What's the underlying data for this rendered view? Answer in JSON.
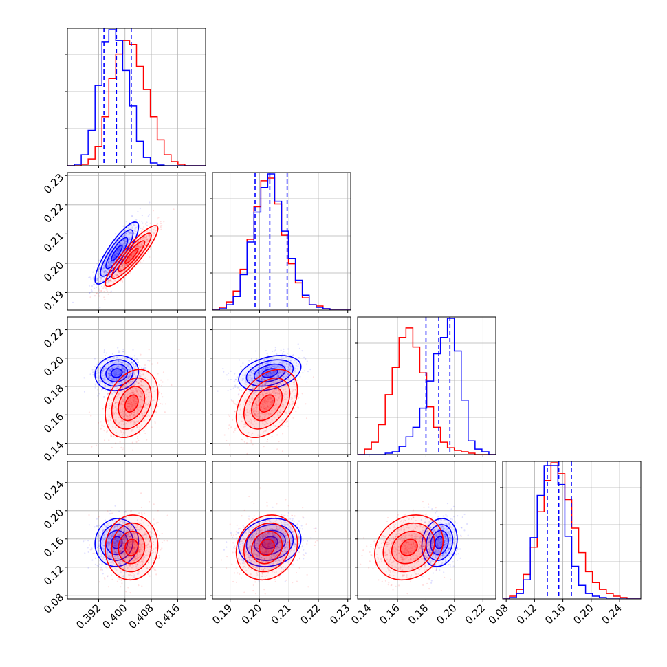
{
  "chart_data": {
    "type": "corner",
    "title": "",
    "grid": true,
    "parameters": [
      "",
      "",
      "",
      ""
    ],
    "series": [
      {
        "color": "#0000ff",
        "means": [
          0.3975,
          0.2035,
          0.1895,
          0.155
        ],
        "stds": [
          0.0033,
          0.0053,
          0.0062,
          0.017
        ],
        "correlations": {
          "0-1": 0.85,
          "0-2": 0.1,
          "0-3": 0.05,
          "1-2": 0.35,
          "1-3": 0.15,
          "2-3": 0.15
        },
        "quantile_lines": [
          [
            0.3936,
            0.3974,
            0.4019
          ],
          [
            0.1985,
            0.2035,
            0.2094
          ],
          [
            0.18,
            0.189,
            0.1968
          ],
          [
            0.138,
            0.1542,
            0.172
          ]
        ]
      },
      {
        "color": "#ff0000",
        "means": [
          0.402,
          0.2025,
          0.168,
          0.148
        ],
        "stds": [
          0.004,
          0.0052,
          0.012,
          0.023
        ],
        "correlations": {
          "0-1": 0.9,
          "0-2": 0.3,
          "0-3": 0.05,
          "1-2": 0.4,
          "1-3": 0.15,
          "2-3": 0.2
        }
      }
    ],
    "axes": [
      {
        "range": [
          0.3825,
          0.4245
        ],
        "ticks": [
          0.392,
          0.4,
          0.408,
          0.416
        ],
        "tick_labels": [
          "0.392",
          "0.400",
          "0.408",
          "0.416"
        ]
      },
      {
        "range": [
          0.184,
          0.231
        ],
        "ticks": [
          0.19,
          0.2,
          0.21,
          0.22,
          0.23
        ],
        "tick_labels": [
          "0.19",
          "0.20",
          "0.21",
          "0.22",
          "0.23"
        ]
      },
      {
        "range": [
          0.132,
          0.229
        ],
        "ticks": [
          0.14,
          0.16,
          0.18,
          0.2,
          0.22
        ],
        "tick_labels": [
          "0.14",
          "0.16",
          "0.18",
          "0.20",
          "0.22"
        ]
      },
      {
        "range": [
          0.075,
          0.27
        ],
        "ticks": [
          0.08,
          0.12,
          0.16,
          0.2,
          0.24
        ],
        "tick_labels": [
          "0.08",
          "0.12",
          "0.16",
          "0.20",
          "0.24"
        ]
      }
    ],
    "histograms": [
      {
        "bin_edges": [
          0.3825,
          0.3846,
          0.3867,
          0.3888,
          0.3909,
          0.393,
          0.3951,
          0.3972,
          0.3993,
          0.4014,
          0.4035,
          0.4056,
          0.4077,
          0.4098,
          0.4119,
          0.414,
          0.4161,
          0.4182,
          0.4203,
          0.4224,
          0.4245
        ],
        "blue": [
          0.0,
          0.01,
          0.08,
          0.26,
          0.59,
          0.91,
          1.0,
          0.92,
          0.7,
          0.44,
          0.18,
          0.06,
          0.02,
          0.005,
          0.0,
          0.0,
          0.0,
          0.0,
          0.0,
          0.0
        ],
        "red": [
          0.0,
          0.0,
          0.01,
          0.05,
          0.14,
          0.36,
          0.64,
          0.82,
          0.92,
          0.89,
          0.73,
          0.56,
          0.36,
          0.19,
          0.08,
          0.03,
          0.01,
          0.0,
          0.0,
          0.0
        ]
      },
      {
        "bin_edges": [
          0.184,
          0.18635,
          0.1887,
          0.19105,
          0.1934,
          0.19575,
          0.1981,
          0.20045,
          0.2028,
          0.20515,
          0.2075,
          0.20985,
          0.2122,
          0.21455,
          0.2169,
          0.21925,
          0.2216,
          0.22395,
          0.2263,
          0.22865,
          0.231
        ],
        "blue": [
          0.0,
          0.01,
          0.04,
          0.1,
          0.26,
          0.5,
          0.72,
          0.9,
          1.0,
          0.8,
          0.58,
          0.38,
          0.22,
          0.11,
          0.04,
          0.02,
          0.01,
          0.0,
          0.0,
          0.0
        ],
        "red": [
          0.0,
          0.02,
          0.06,
          0.14,
          0.3,
          0.52,
          0.76,
          0.95,
          0.97,
          0.78,
          0.55,
          0.34,
          0.2,
          0.09,
          0.04,
          0.03,
          0.01,
          0.0,
          0.0,
          0.0
        ]
      },
      {
        "bin_edges": [
          0.132,
          0.13685,
          0.1417,
          0.14655,
          0.1514,
          0.15625,
          0.1611,
          0.16595,
          0.1708,
          0.17565,
          0.1805,
          0.18535,
          0.1902,
          0.19505,
          0.1999,
          0.20475,
          0.2096,
          0.21445,
          0.2193,
          0.22415,
          0.229
        ],
        "blue": [
          0.0,
          0.0,
          0.0,
          0.0,
          0.01,
          0.02,
          0.06,
          0.13,
          0.2,
          0.34,
          0.54,
          0.74,
          0.86,
          1.0,
          0.76,
          0.4,
          0.1,
          0.04,
          0.02,
          0.0
        ],
        "red": [
          0.0,
          0.04,
          0.09,
          0.22,
          0.44,
          0.64,
          0.86,
          0.93,
          0.79,
          0.6,
          0.35,
          0.2,
          0.09,
          0.05,
          0.03,
          0.02,
          0.01,
          0.0,
          0.0,
          0.0
        ]
      },
      {
        "bin_edges": [
          0.075,
          0.08475,
          0.0945,
          0.10425,
          0.114,
          0.12375,
          0.1335,
          0.14325,
          0.153,
          0.16275,
          0.1725,
          0.18225,
          0.192,
          0.20175,
          0.2115,
          0.22125,
          0.231,
          0.24075,
          0.2505,
          0.26025,
          0.27
        ],
        "blue": [
          0.0,
          0.01,
          0.04,
          0.14,
          0.45,
          0.76,
          0.98,
          0.98,
          0.84,
          0.46,
          0.24,
          0.1,
          0.04,
          0.02,
          0.01,
          0.0,
          0.0,
          0.0,
          0.0,
          0.0
        ],
        "red": [
          0.0,
          0.02,
          0.07,
          0.18,
          0.38,
          0.64,
          0.87,
          1.0,
          0.92,
          0.73,
          0.52,
          0.34,
          0.2,
          0.12,
          0.07,
          0.04,
          0.02,
          0.01,
          0.0,
          0.0
        ]
      }
    ]
  }
}
